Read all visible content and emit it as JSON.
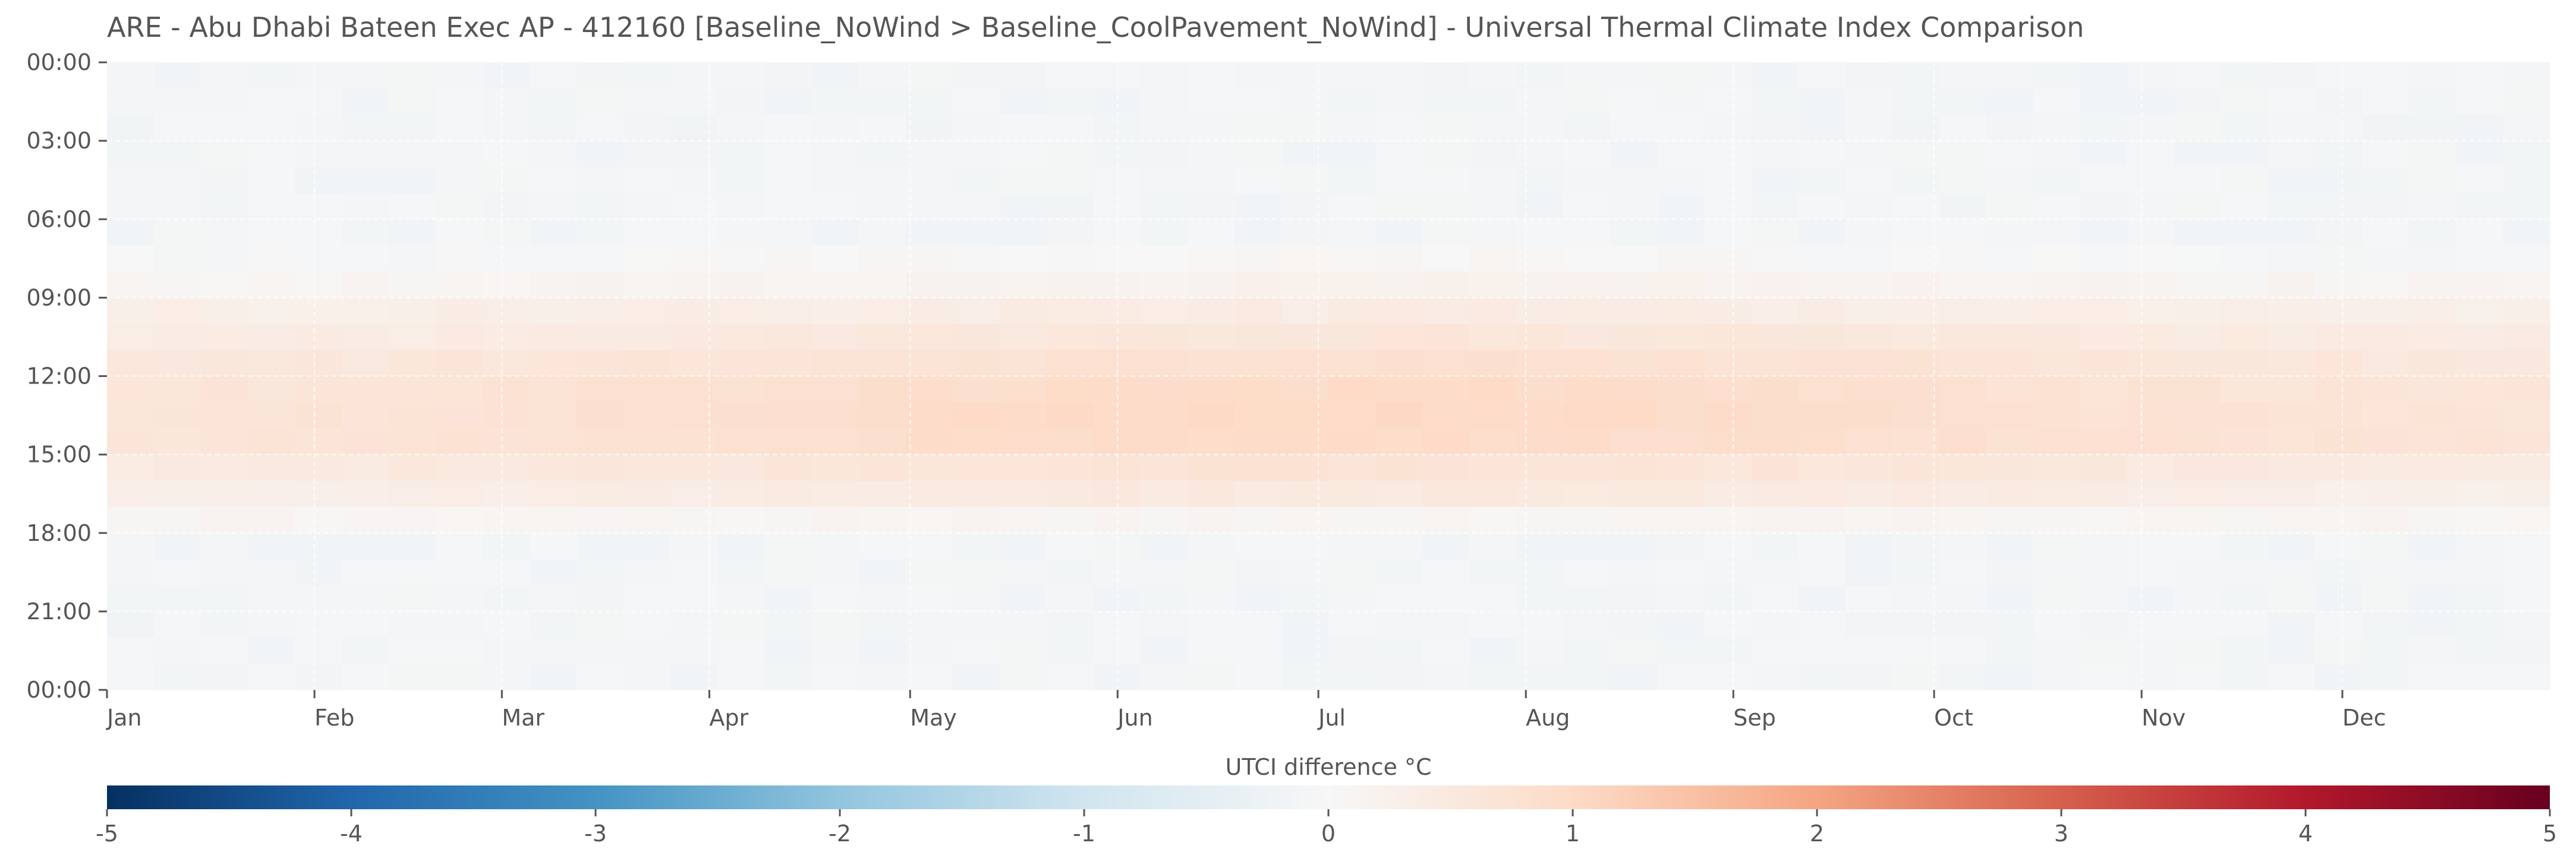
{
  "chart_data": {
    "type": "heatmap",
    "title": "ARE - Abu Dhabi Bateen Exec AP - 412160 [Baseline_NoWind > Baseline_CoolPavement_NoWind] - Universal Thermal Climate Index Comparison",
    "xlabel": "",
    "ylabel": "",
    "x_tick_labels": [
      "Jan",
      "Feb",
      "Mar",
      "Apr",
      "May",
      "Jun",
      "Jul",
      "Aug",
      "Sep",
      "Oct",
      "Nov",
      "Dec"
    ],
    "y_tick_labels": [
      "00:00",
      "03:00",
      "06:00",
      "09:00",
      "12:00",
      "15:00",
      "18:00",
      "21:00",
      "00:00"
    ],
    "grid": true,
    "colormap": "RdBu_r",
    "colorbar": {
      "label": "UTCI difference °C",
      "range": [
        -5,
        5
      ],
      "ticks": [
        "-5",
        "-4",
        "-3",
        "-2",
        "-1",
        "0",
        "1",
        "2",
        "3",
        "4",
        "5"
      ],
      "placement": "bottom"
    },
    "hourly_profile": {
      "hours": [
        0,
        1,
        2,
        3,
        4,
        5,
        6,
        7,
        8,
        9,
        10,
        11,
        12,
        13,
        14,
        15,
        16,
        17,
        18,
        19,
        20,
        21,
        22,
        23
      ],
      "winter_values": [
        -0.1,
        -0.1,
        -0.1,
        -0.1,
        -0.1,
        -0.1,
        -0.1,
        -0.05,
        0.1,
        0.3,
        0.4,
        0.55,
        0.6,
        0.65,
        0.65,
        0.45,
        0.3,
        0.1,
        -0.1,
        -0.1,
        -0.1,
        -0.1,
        -0.1,
        -0.1
      ],
      "summer_values": [
        -0.1,
        -0.1,
        -0.1,
        -0.1,
        -0.1,
        -0.1,
        -0.1,
        0.05,
        0.2,
        0.4,
        0.6,
        0.8,
        0.95,
        1.0,
        0.95,
        0.7,
        0.5,
        0.1,
        -0.1,
        -0.1,
        -0.1,
        -0.1,
        -0.1,
        -0.1
      ]
    }
  }
}
